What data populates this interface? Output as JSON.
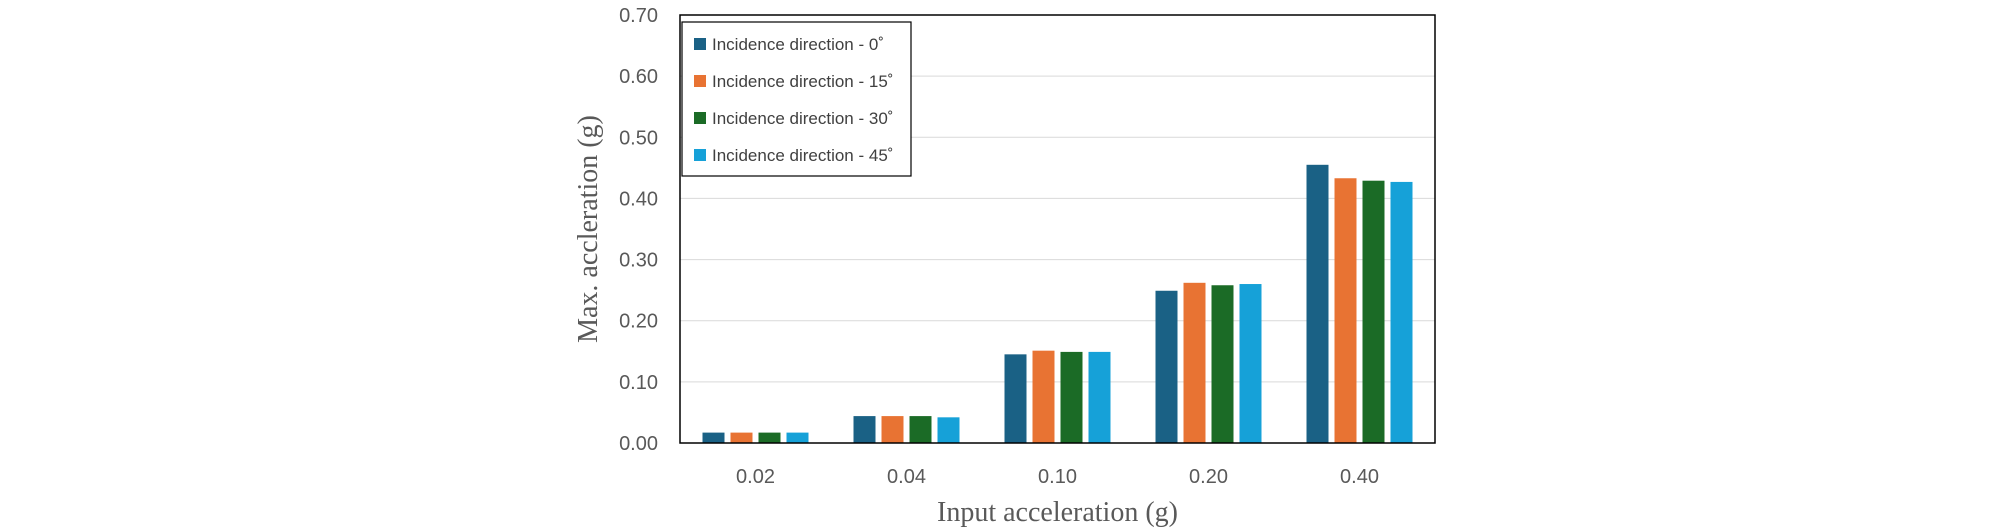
{
  "chart_data": {
    "type": "bar",
    "title": "",
    "xlabel": "Input acceleration (g)",
    "ylabel": "Max. accleration (g)",
    "ylim": [
      0,
      0.7
    ],
    "yticks": [
      "0.00",
      "0.10",
      "0.20",
      "0.30",
      "0.40",
      "0.50",
      "0.60",
      "0.70"
    ],
    "categories": [
      "0.02",
      "0.04",
      "0.10",
      "0.20",
      "0.40"
    ],
    "grid": true,
    "legend_position": "top-left",
    "series": [
      {
        "name": "Incidence direction - 0˚",
        "color": "#1a6185",
        "values": [
          0.017,
          0.044,
          0.145,
          0.249,
          0.455
        ]
      },
      {
        "name": "Incidence direction - 15˚",
        "color": "#e87333",
        "values": [
          0.017,
          0.044,
          0.151,
          0.262,
          0.433
        ]
      },
      {
        "name": "Incidence direction - 30˚",
        "color": "#1b6b26",
        "values": [
          0.017,
          0.044,
          0.149,
          0.258,
          0.429
        ]
      },
      {
        "name": "Incidence direction - 45˚",
        "color": "#16a1d8",
        "values": [
          0.017,
          0.042,
          0.149,
          0.26,
          0.427
        ]
      }
    ]
  }
}
